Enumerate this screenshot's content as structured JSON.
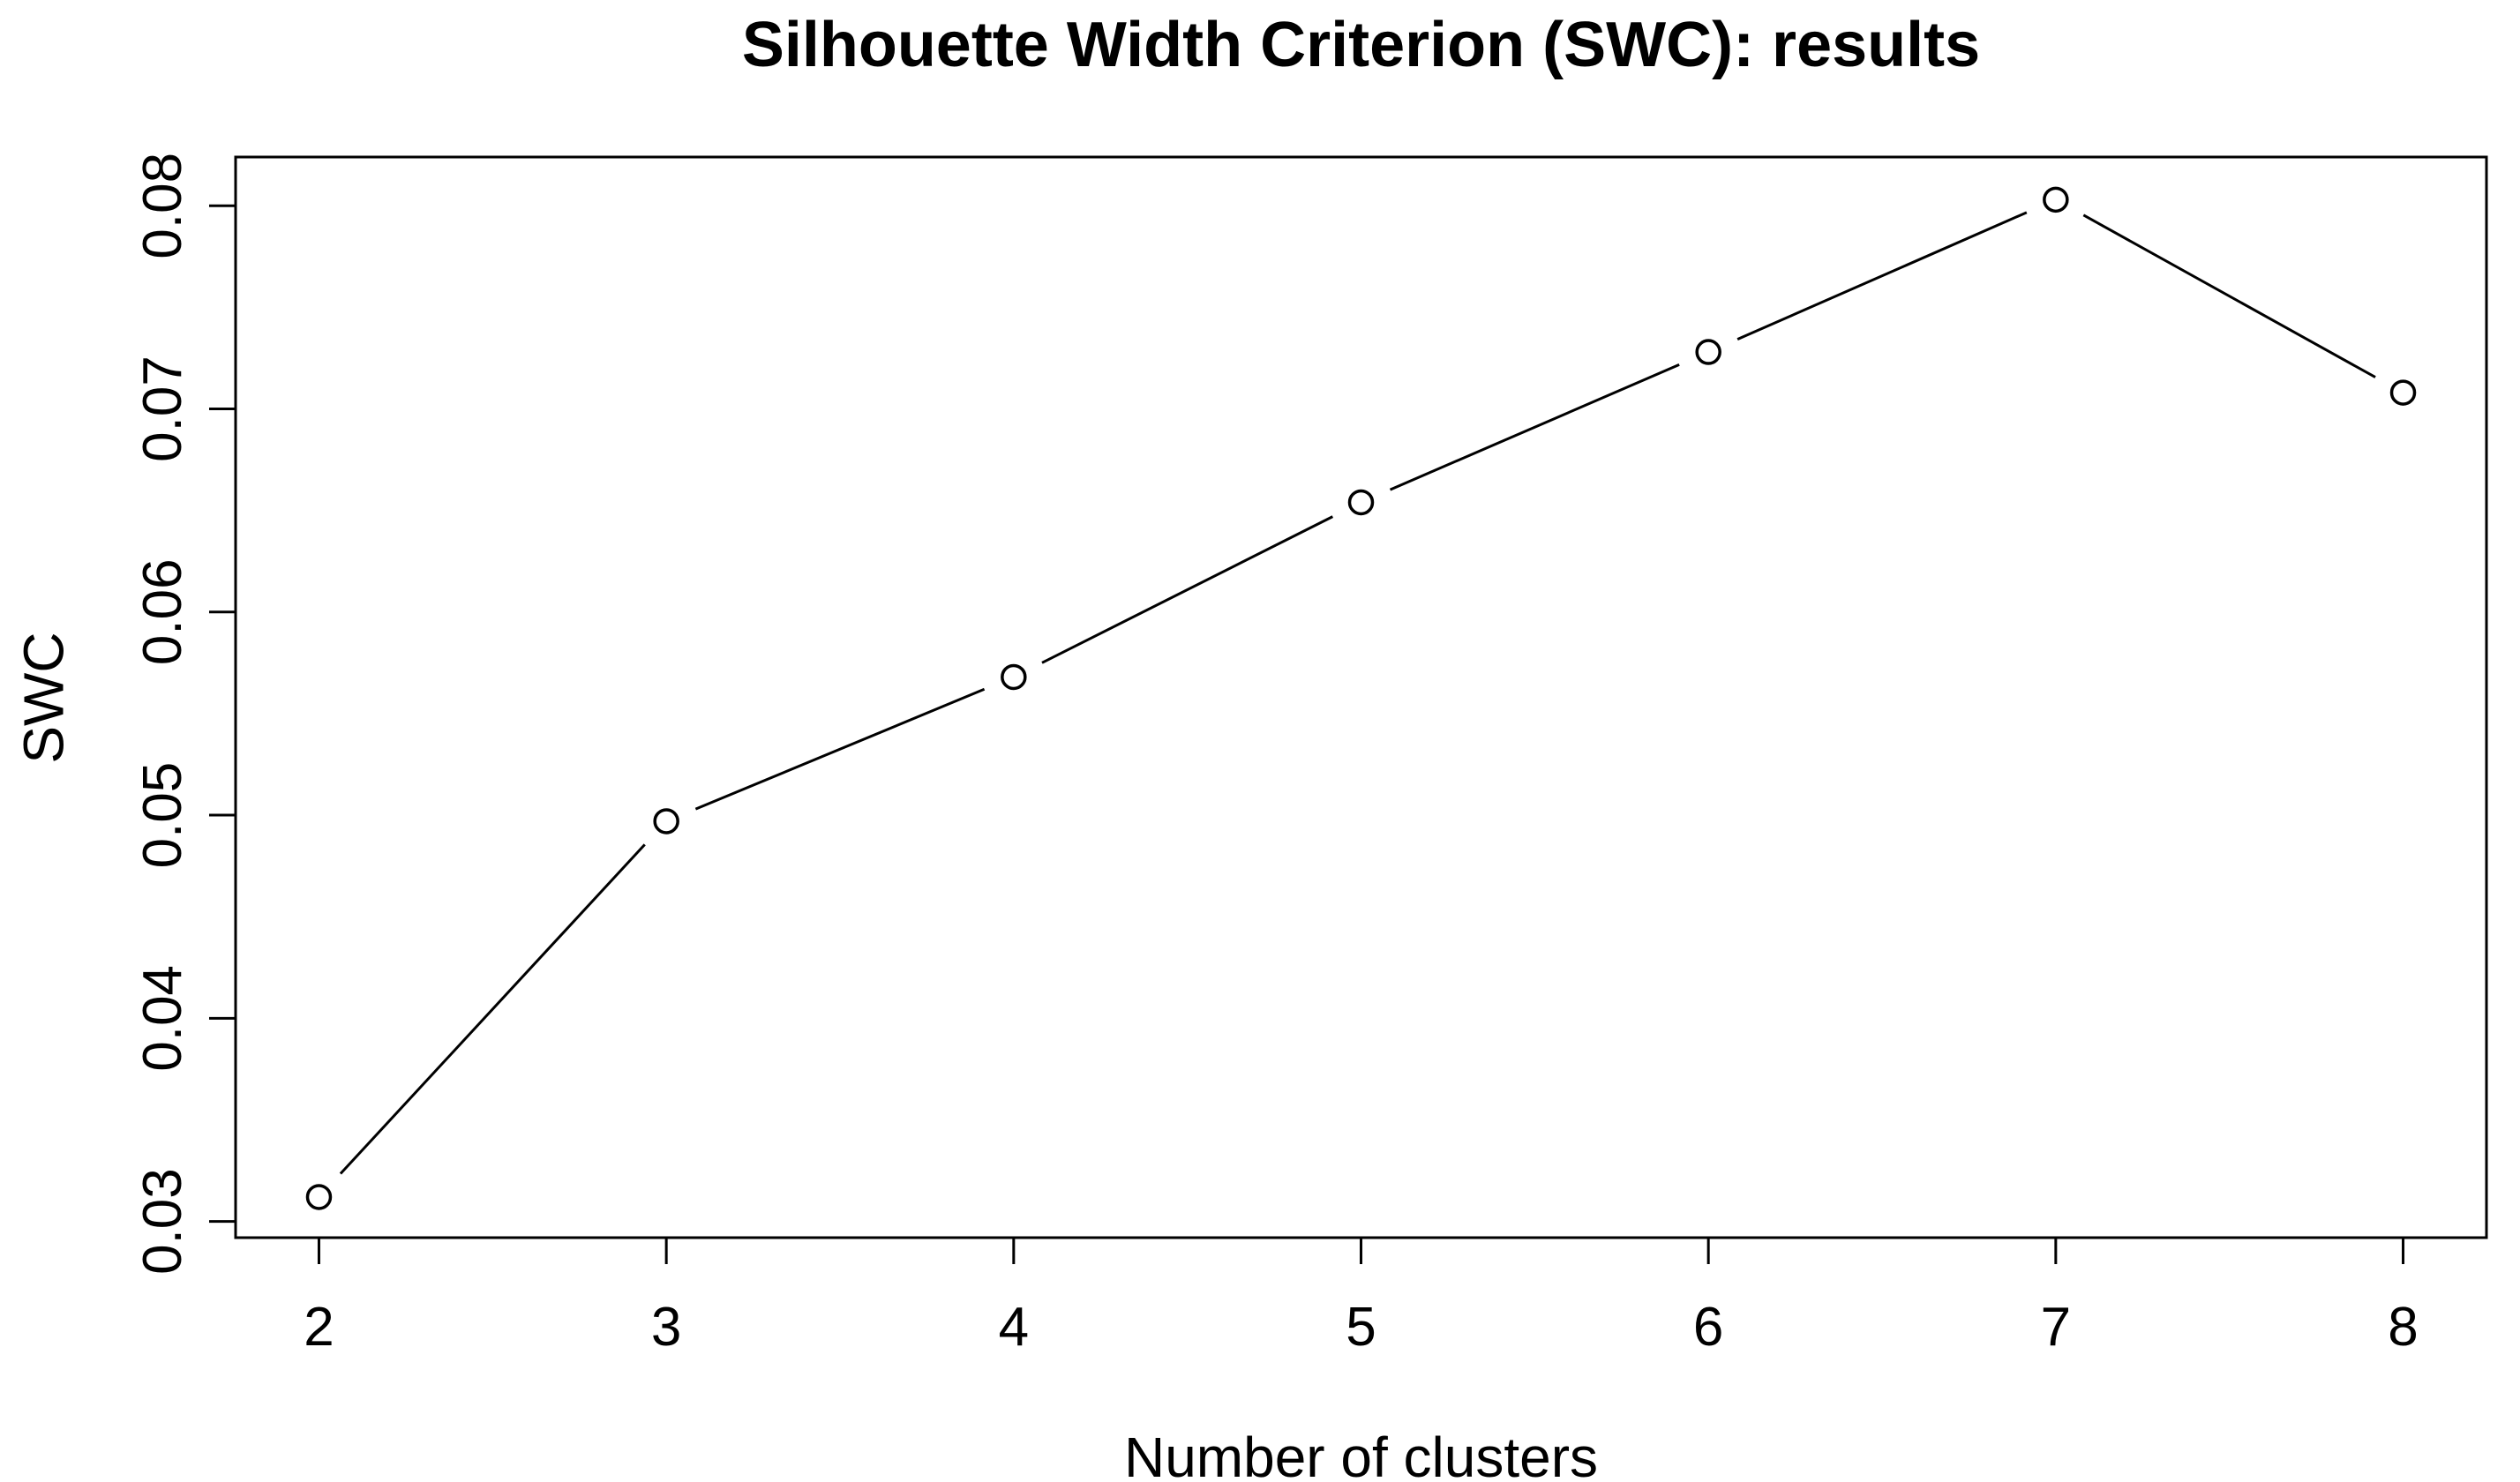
{
  "chart_data": {
    "type": "line",
    "title": "Silhouette Width Criterion (SWC): results",
    "xlabel": "Number of clusters",
    "ylabel": "SWC",
    "x": [
      2,
      3,
      4,
      5,
      6,
      7,
      8
    ],
    "y": [
      0.0312,
      0.0497,
      0.0568,
      0.0654,
      0.0728,
      0.0803,
      0.0708
    ],
    "x_tick_labels": [
      "2",
      "3",
      "4",
      "5",
      "6",
      "7",
      "8"
    ],
    "y_ticks": [
      0.03,
      0.04,
      0.05,
      0.06,
      0.07,
      0.08
    ],
    "y_tick_labels": [
      "0.03",
      "0.04",
      "0.05",
      "0.06",
      "0.07",
      "0.08"
    ],
    "xlim": [
      1.76,
      8.24
    ],
    "ylim": [
      0.0292,
      0.0824
    ],
    "grid": false,
    "legend_position": "none",
    "marker": "open-circle",
    "line_style": "segments-with-gaps-around-points",
    "colors": {
      "foreground": "#000000",
      "background": "#ffffff"
    }
  }
}
